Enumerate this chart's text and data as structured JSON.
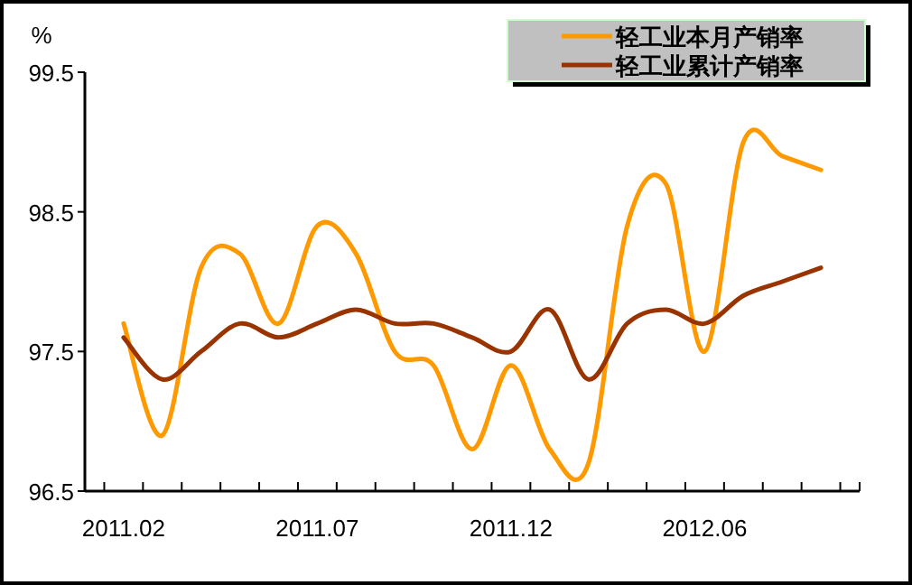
{
  "chart_data": {
    "type": "line",
    "ylabel": "%",
    "categories": [
      "2011.02",
      null,
      null,
      null,
      null,
      "2011.07",
      null,
      null,
      null,
      null,
      "2011.12",
      null,
      null,
      null,
      null,
      "2012.06",
      null,
      null,
      null
    ],
    "series": [
      {
        "name": "轻工业本月产销率",
        "color": "#ff9900",
        "values": [
          97.7,
          96.9,
          98.1,
          98.2,
          97.7,
          98.4,
          98.2,
          97.5,
          97.4,
          96.8,
          97.4,
          96.8,
          96.7,
          98.4,
          98.7,
          97.5,
          99.0,
          98.9,
          98.8
        ]
      },
      {
        "name": "轻工业累计产销率",
        "color": "#993300",
        "values": [
          97.6,
          97.3,
          97.5,
          97.7,
          97.6,
          97.7,
          97.8,
          97.7,
          97.7,
          97.6,
          97.5,
          97.8,
          97.3,
          97.7,
          97.8,
          97.7,
          97.9,
          98.0,
          98.1
        ]
      }
    ],
    "ylim": [
      96.5,
      99.5
    ],
    "yticks": [
      96.5,
      97.5,
      98.5,
      99.5
    ],
    "grid": false,
    "legend": "top right",
    "marker": "none",
    "line_style": "solid"
  }
}
